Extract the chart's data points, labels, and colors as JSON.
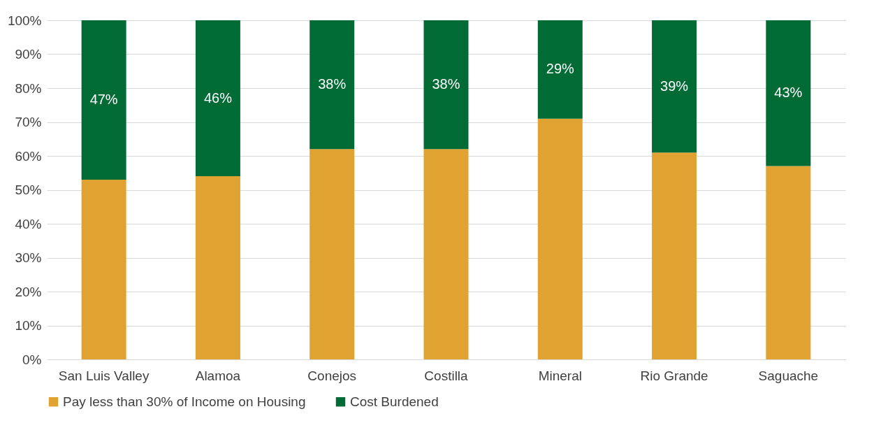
{
  "chart_data": {
    "type": "bar",
    "stacked": true,
    "categories": [
      "San Luis Valley",
      "Alamoa",
      "Conejos",
      "Costilla",
      "Mineral",
      "Rio Grande",
      "Saguache"
    ],
    "series": [
      {
        "name": "Pay less than 30% of Income on Housing",
        "color": "#e0a230",
        "values": [
          53,
          54,
          62,
          62,
          71,
          61,
          57
        ]
      },
      {
        "name": "Cost Burdened",
        "color": "#006b35",
        "values": [
          47,
          46,
          38,
          38,
          29,
          39,
          43
        ],
        "value_labels": [
          "47%",
          "46%",
          "38%",
          "38%",
          "29%",
          "39%",
          "43%"
        ]
      }
    ],
    "ylim": [
      0,
      100
    ],
    "yticks": [
      {
        "value": 0,
        "label": "0%"
      },
      {
        "value": 10,
        "label": "10%"
      },
      {
        "value": 20,
        "label": "20%"
      },
      {
        "value": 30,
        "label": "30%"
      },
      {
        "value": 40,
        "label": "40%"
      },
      {
        "value": 50,
        "label": "50%"
      },
      {
        "value": 60,
        "label": "60%"
      },
      {
        "value": 70,
        "label": "70%"
      },
      {
        "value": 80,
        "label": "80%"
      },
      {
        "value": 90,
        "label": "90%"
      },
      {
        "value": 100,
        "label": "100%"
      }
    ],
    "grid": "y",
    "legend": "bottom"
  }
}
